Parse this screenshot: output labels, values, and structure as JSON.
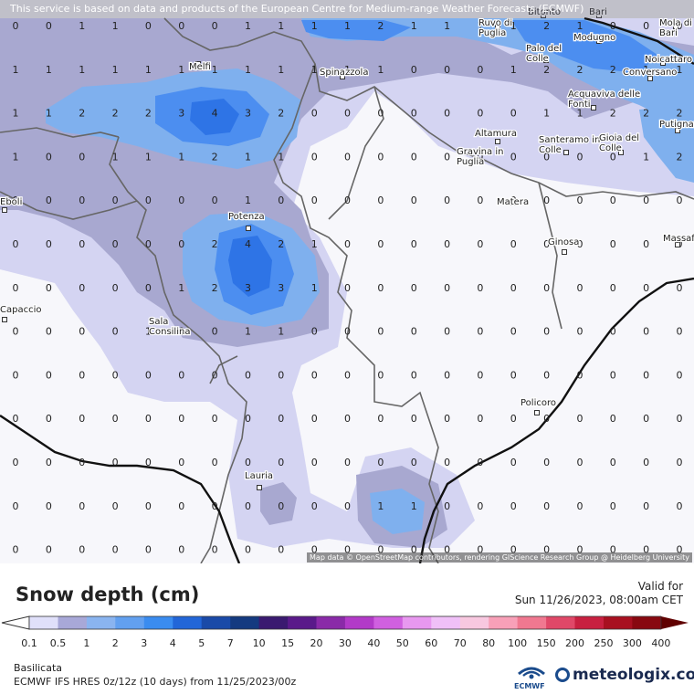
{
  "header": {
    "disclaimer": "This service is based on data and products of the European Centre for Medium-range Weather Forecasts (ECMWF)"
  },
  "map": {
    "attribution": "Map data © OpenStreetMap contributors, rendering GIScience Research Group @ Heidelberg University",
    "cities": [
      {
        "name": "Melfi"
      },
      {
        "name": "Spinazzola"
      },
      {
        "name": "Bitonto"
      },
      {
        "name": "Bari"
      },
      {
        "name": "Mola di Bari"
      },
      {
        "name": "Ruvo di Puglia"
      },
      {
        "name": "Modugno"
      },
      {
        "name": "Palo del Colle"
      },
      {
        "name": "Noicattaro"
      },
      {
        "name": "Conversano"
      },
      {
        "name": "Acquaviva delle Fonti"
      },
      {
        "name": "Putignano"
      },
      {
        "name": "Altamura"
      },
      {
        "name": "Gravina in Puglia"
      },
      {
        "name": "Santeramo in Colle"
      },
      {
        "name": "Gioia del Colle"
      },
      {
        "name": "Matera"
      },
      {
        "name": "Potenza"
      },
      {
        "name": "Ginosa"
      },
      {
        "name": "Massafra"
      },
      {
        "name": "Sala Consilina"
      },
      {
        "name": "Policoro"
      },
      {
        "name": "Lauria"
      },
      {
        "name": "Capaccio"
      },
      {
        "name": "Eboli"
      }
    ],
    "grid_values": [
      [
        0,
        0,
        1,
        1,
        0,
        0,
        0,
        1,
        1,
        1,
        1,
        2,
        1,
        1,
        1,
        1,
        2,
        1,
        0,
        0,
        0
      ],
      [
        1,
        1,
        1,
        1,
        1,
        1,
        1,
        1,
        1,
        1,
        1,
        1,
        0,
        0,
        0,
        1,
        2,
        2,
        2,
        1,
        1
      ],
      [
        1,
        1,
        2,
        2,
        2,
        3,
        4,
        3,
        2,
        0,
        0,
        0,
        0,
        0,
        0,
        0,
        1,
        1,
        2,
        2,
        2
      ],
      [
        1,
        0,
        0,
        1,
        1,
        1,
        2,
        1,
        1,
        0,
        0,
        0,
        0,
        0,
        0,
        0,
        0,
        0,
        0,
        1,
        2
      ],
      [
        0,
        0,
        0,
        0,
        0,
        0,
        0,
        1,
        0,
        0,
        0,
        0,
        0,
        0,
        0,
        0,
        0,
        0,
        0,
        0,
        0
      ],
      [
        0,
        0,
        0,
        0,
        0,
        0,
        2,
        4,
        2,
        1,
        0,
        0,
        0,
        0,
        0,
        0,
        0,
        0,
        0,
        0,
        0
      ],
      [
        0,
        0,
        0,
        0,
        0,
        1,
        2,
        3,
        3,
        1,
        0,
        0,
        0,
        0,
        0,
        0,
        0,
        0,
        0,
        0,
        0
      ],
      [
        0,
        0,
        0,
        0,
        1,
        0,
        0,
        1,
        1,
        0,
        0,
        0,
        0,
        0,
        0,
        0,
        0,
        0,
        0,
        0,
        0
      ],
      [
        0,
        0,
        0,
        0,
        0,
        0,
        0,
        0,
        0,
        0,
        0,
        0,
        0,
        0,
        0,
        0,
        0,
        0,
        0,
        0,
        0
      ],
      [
        0,
        0,
        0,
        0,
        0,
        0,
        0,
        0,
        0,
        0,
        0,
        0,
        0,
        0,
        0,
        0,
        0,
        0,
        0,
        0,
        0
      ],
      [
        0,
        0,
        0,
        0,
        0,
        0,
        0,
        0,
        0,
        0,
        0,
        0,
        0,
        0,
        0,
        0,
        0,
        0,
        0,
        0,
        0
      ],
      [
        0,
        0,
        0,
        0,
        0,
        0,
        0,
        0,
        0,
        0,
        0,
        1,
        1,
        0,
        0,
        0,
        0,
        0,
        0,
        0,
        0
      ],
      [
        0,
        0,
        0,
        0,
        0,
        0,
        0,
        0,
        0,
        0,
        0,
        0,
        0,
        0,
        0,
        0,
        0,
        0,
        0,
        0,
        0
      ]
    ]
  },
  "legend": {
    "title": "Snow depth (cm)",
    "valid_label": "Valid for",
    "valid_time": "Sun 11/26/2023, 08:00am CET",
    "labels": [
      "0.1",
      "0.5",
      "1",
      "2",
      "3",
      "4",
      "5",
      "7",
      "10",
      "15",
      "20",
      "30",
      "40",
      "50",
      "60",
      "70",
      "80",
      "100",
      "150",
      "200",
      "250",
      "300",
      "400"
    ],
    "colors": [
      "#ffffff",
      "#e0e0fa",
      "#a8a8d8",
      "#8ab4f0",
      "#62a0f0",
      "#3a8cf0",
      "#2266d8",
      "#1a4aa8",
      "#143a80",
      "#3a1a70",
      "#5a1a8a",
      "#8a2aa8",
      "#b23ac8",
      "#d060e0",
      "#e898f0",
      "#f0c0f8",
      "#f8c8e0",
      "#f8a0b8",
      "#f07890",
      "#e04868",
      "#c82040",
      "#a81020",
      "#880810",
      "#600000"
    ]
  },
  "info": {
    "region": "Basilicata",
    "model": "ECMWF IFS HRES 0z/12z (10 days) from 11/25/2023/00z",
    "ecmwf_text": "ECMWF",
    "brand": "meteologix.com"
  }
}
